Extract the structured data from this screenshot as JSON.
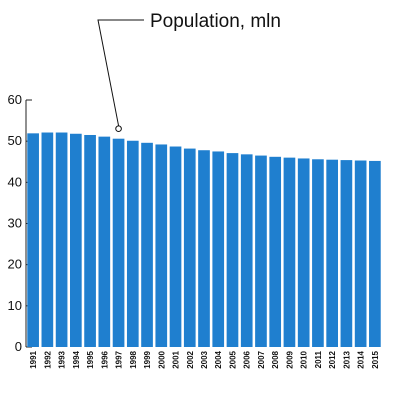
{
  "chart_data": {
    "type": "bar",
    "annotation": "Population, mln",
    "categories": [
      "1991",
      "1992",
      "1993",
      "1994",
      "1995",
      "1996",
      "1997",
      "1998",
      "1999",
      "2000",
      "2001",
      "2002",
      "2003",
      "2004",
      "2005",
      "2006",
      "2007",
      "2008",
      "2009",
      "2010",
      "2011",
      "2012",
      "2013",
      "2014",
      "2015"
    ],
    "values": [
      51.9,
      52.1,
      52.1,
      51.8,
      51.5,
      51.1,
      50.6,
      50.1,
      49.6,
      49.2,
      48.7,
      48.2,
      47.8,
      47.5,
      47.1,
      46.8,
      46.5,
      46.2,
      46.0,
      45.8,
      45.6,
      45.5,
      45.4,
      45.3,
      45.2
    ],
    "yticks": [
      0,
      10,
      20,
      30,
      40,
      50,
      60
    ],
    "ylim": [
      0,
      60
    ],
    "bar_color": "#1f7fcf",
    "grid": false,
    "annotation_points_to": "1997"
  }
}
